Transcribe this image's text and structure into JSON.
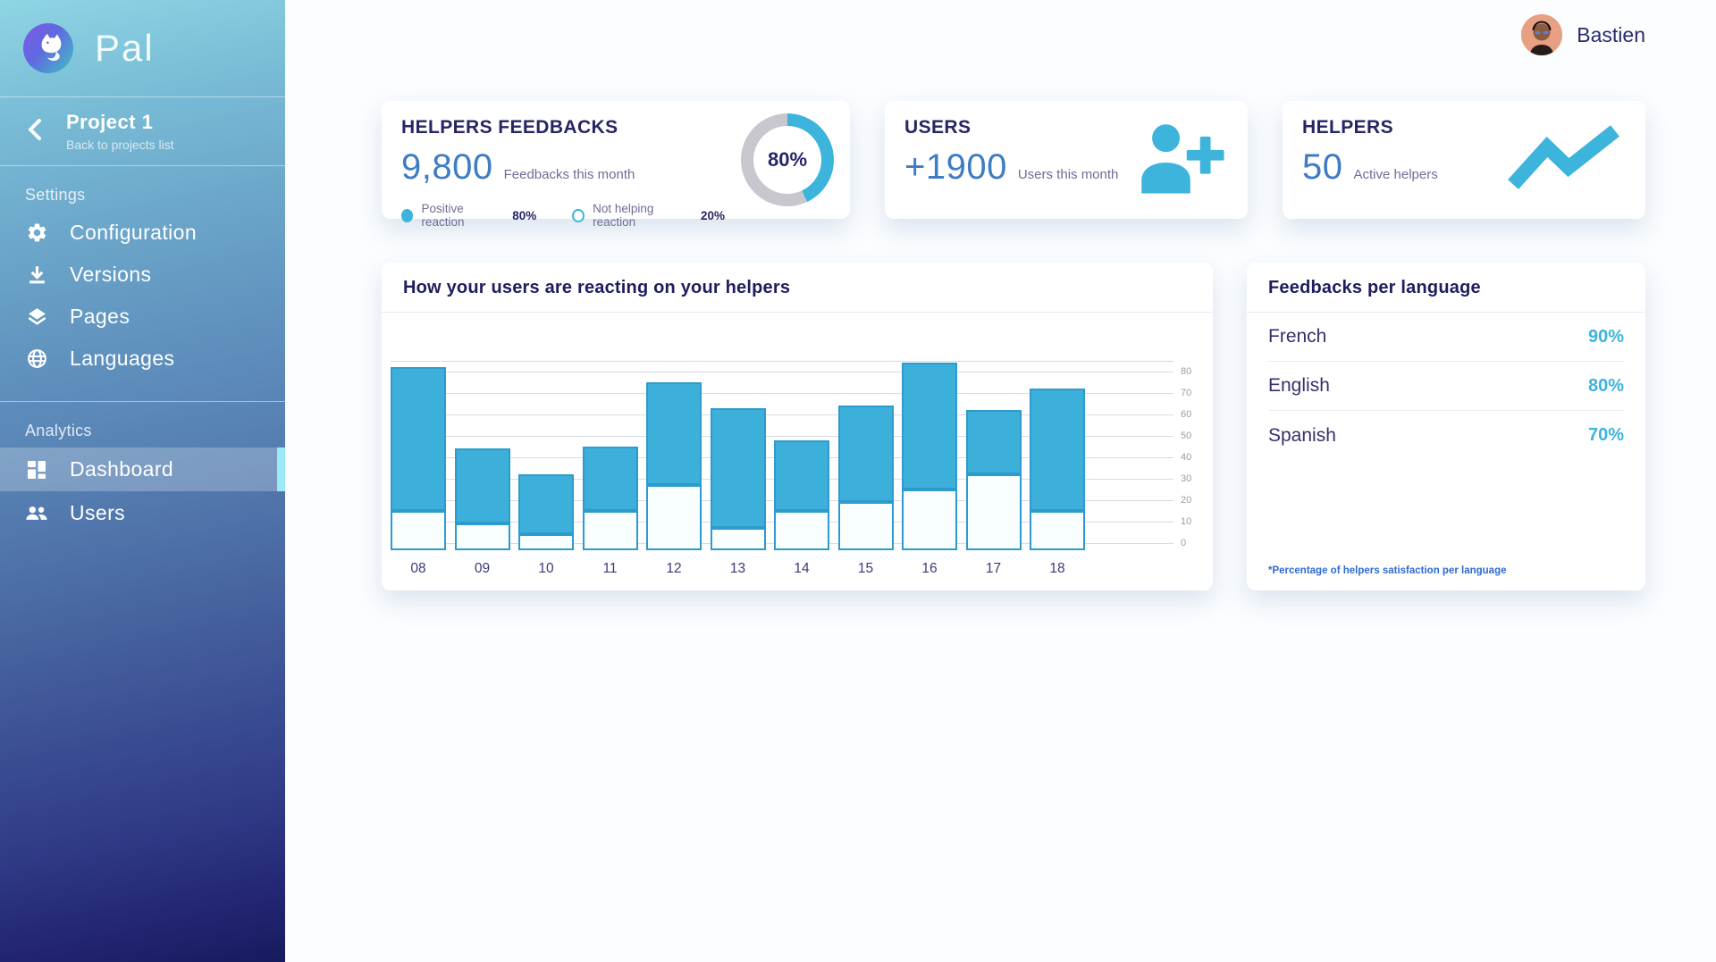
{
  "app": {
    "logo_text": "Pal"
  },
  "header": {
    "username": "Bastien"
  },
  "sidebar": {
    "project": {
      "name": "Project 1",
      "back": "Back to projects list"
    },
    "settings_label": "Settings",
    "analytics_label": "Analytics",
    "items": {
      "configuration": "Configuration",
      "versions": "Versions",
      "pages": "Pages",
      "languages": "Languages",
      "dashboard": "Dashboard",
      "users": "Users"
    }
  },
  "stats": {
    "feedbacks": {
      "title": "HELPERS FEEDBACKS",
      "value": "9,800",
      "caption": "Feedbacks this month",
      "donut": {
        "label": "80%",
        "arc_percent": 43
      },
      "legend": [
        {
          "label": "Positive reaction",
          "value": "80%"
        },
        {
          "label": "Not helping reaction",
          "value": "20%"
        }
      ]
    },
    "users": {
      "title": "USERS",
      "value": "+1900",
      "caption": "Users this month"
    },
    "helpers": {
      "title": "HELPERS",
      "value": "50",
      "caption": "Active helpers"
    }
  },
  "reaction_chart": {
    "title": "How your users are reacting on your helpers"
  },
  "chart_data": {
    "type": "bar",
    "stacked": true,
    "title": "How your users are reacting on your helpers",
    "categories": [
      "08",
      "09",
      "10",
      "11",
      "12",
      "13",
      "14",
      "15",
      "16",
      "17",
      "18"
    ],
    "series": [
      {
        "name": "Not helping reaction",
        "color": "#f9feff",
        "values": [
          15,
          9,
          4,
          15,
          27,
          7,
          15,
          19,
          25,
          32,
          15
        ]
      },
      {
        "name": "Positive reaction",
        "color": "#3cb0da",
        "values": [
          67,
          35,
          28,
          30,
          48,
          56,
          33,
          45,
          59,
          30,
          57
        ]
      }
    ],
    "totals": [
      82,
      44,
      32,
      45,
      75,
      63,
      48,
      64,
      84,
      62,
      72
    ],
    "xlabel": "",
    "ylabel": "",
    "ylim": [
      0,
      85
    ],
    "yticks": [
      0,
      10,
      20,
      30,
      40,
      50,
      60,
      70,
      80
    ],
    "ytick_side": "right",
    "grid": true,
    "legend_position": "none"
  },
  "languages_card": {
    "title": "Feedbacks per language",
    "rows": [
      {
        "language": "French",
        "value": "90%"
      },
      {
        "language": "English",
        "value": "80%"
      },
      {
        "language": "Spanish",
        "value": "70%"
      }
    ],
    "footnote": "*Percentage of helpers satisfaction per language"
  },
  "colors": {
    "accent_cyan": "#3cb4dc",
    "bar_fill": "#3cb0da",
    "bar_border": "#2d9bcd",
    "bar_bottom_fill": "#f9feff",
    "navy": "#272564",
    "number_blue": "#3e7dc4",
    "muted": "#6f6d96",
    "donut_gray": "#c9c7ce",
    "footnote_blue": "#2f6bd0",
    "active_indicator": "#9ceaf6"
  }
}
